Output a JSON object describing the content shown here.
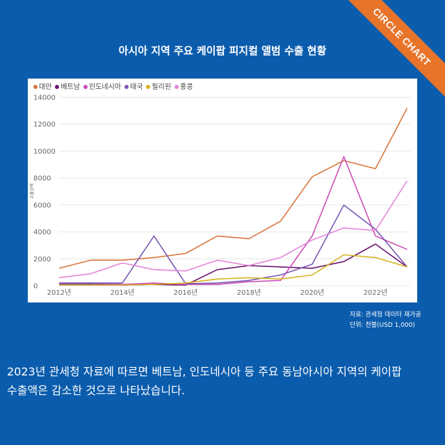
{
  "badge": {
    "label": "CIRCLE CHART"
  },
  "title": "아시아 지역 주요 케이팝 피지컬 앨범 수출 현황",
  "source": {
    "line1": "자료: 관세청 데이터 재가공",
    "line2": "단위: 천불(USD 1,000)"
  },
  "caption": {
    "line1": "2023년 관세청 자료에 따르면 베트남, 인도네시아 등 주요 동남아시아 지역의 케이팝",
    "line2": "수출액은 감소한 것으로 나타났습니다."
  },
  "chart_data": {
    "type": "line",
    "title": "아시아 지역 주요 케이팝 피지컬 앨범 수출 현황",
    "xlabel": "",
    "ylabel": "수출금액",
    "x": [
      2012,
      2013,
      2014,
      2015,
      2016,
      2017,
      2018,
      2019,
      2020,
      2021,
      2022,
      2023
    ],
    "xticks": [
      "2012년",
      "2014년",
      "2016년",
      "2018년",
      "2020년",
      "2022년"
    ],
    "xtick_values": [
      2012,
      2014,
      2016,
      2018,
      2020,
      2022
    ],
    "yticks": [
      "0",
      "2000",
      "4000",
      "6000",
      "8000",
      "10000",
      "12000",
      "14000"
    ],
    "ylim": [
      0,
      14000
    ],
    "grid": true,
    "legend_position": "top-left",
    "series": [
      {
        "name": "대만",
        "color": "#d9773f",
        "values": [
          1300,
          1900,
          1900,
          2100,
          2400,
          3700,
          3500,
          4800,
          8100,
          9300,
          8700,
          13200
        ]
      },
      {
        "name": "베트남",
        "color": "#6b1470",
        "values": [
          100,
          100,
          50,
          100,
          50,
          1200,
          1500,
          1400,
          1300,
          1800,
          3100,
          1400
        ]
      },
      {
        "name": "인도네시아",
        "color": "#cc4fb8",
        "values": [
          200,
          200,
          100,
          200,
          100,
          100,
          300,
          400,
          3700,
          9600,
          3700,
          2700
        ]
      },
      {
        "name": "태국",
        "color": "#7a59b3",
        "values": [
          200,
          200,
          200,
          3700,
          150,
          200,
          400,
          800,
          1600,
          6000,
          4200,
          1400
        ]
      },
      {
        "name": "필리핀",
        "color": "#d6b320",
        "values": [
          50,
          50,
          50,
          100,
          200,
          500,
          600,
          500,
          800,
          2300,
          2100,
          1400
        ]
      },
      {
        "name": "홍콩",
        "color": "#e685d8",
        "values": [
          600,
          900,
          1700,
          1200,
          1100,
          1900,
          1500,
          2100,
          3400,
          4300,
          4100,
          7800
        ]
      }
    ]
  }
}
